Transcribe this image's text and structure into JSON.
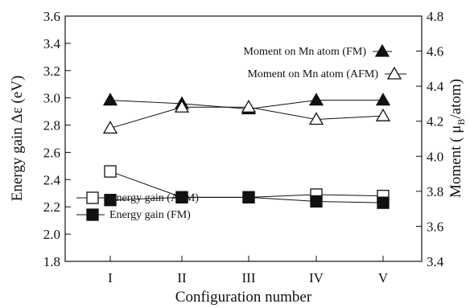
{
  "chart_data": {
    "type": "line",
    "xlabel": "Configuration number",
    "ylabel_left": "Energy gain Δε (eV)",
    "ylabel_right_main": "Moment ( μ",
    "ylabel_right_sub": "B",
    "ylabel_right_tail": "/atom)",
    "categories": [
      "I",
      "II",
      "III",
      "IV",
      "V"
    ],
    "y_left": {
      "ylim": [
        1.8,
        3.6
      ],
      "ticks": [
        "1.8",
        "2.0",
        "2.2",
        "2.4",
        "2.6",
        "2.8",
        "3.0",
        "3.2",
        "3.4",
        "3.6"
      ]
    },
    "y_right": {
      "ylim": [
        3.4,
        4.8
      ],
      "ticks": [
        "3.4",
        "3.6",
        "3.8",
        "4.0",
        "4.2",
        "4.4",
        "4.6",
        "4.8"
      ]
    },
    "grid": false,
    "series": [
      {
        "name": "Moment on Mn atom (FM)",
        "axis": "right",
        "marker": "triangle",
        "filled": true,
        "values": [
          4.32,
          4.3,
          4.27,
          4.32,
          4.32
        ]
      },
      {
        "name": "Moment on Mn atom (AFM)",
        "axis": "right",
        "marker": "triangle",
        "filled": false,
        "values": [
          4.16,
          4.28,
          4.28,
          4.21,
          4.23
        ]
      },
      {
        "name": "Energy gain (AFM)",
        "axis": "left",
        "marker": "square",
        "filled": false,
        "values": [
          2.46,
          2.27,
          2.27,
          2.29,
          2.28
        ]
      },
      {
        "name": "Energy gain (FM)",
        "axis": "left",
        "marker": "square",
        "filled": true,
        "values": [
          2.25,
          2.27,
          2.27,
          2.24,
          2.23
        ]
      }
    ],
    "legends": [
      {
        "label": "Moment on Mn atom (FM)",
        "series": 0,
        "placement": "upper-right",
        "marker_after_text": true
      },
      {
        "label": "Moment on Mn atom (AFM)",
        "series": 1,
        "placement": "upper-right",
        "marker_after_text": true
      },
      {
        "label": "Energy gain (AFM)",
        "series": 2,
        "placement": "lower-left",
        "marker_after_text": false
      },
      {
        "label": "Energy gain (FM)",
        "series": 3,
        "placement": "lower-left",
        "marker_after_text": false
      }
    ],
    "colors": {
      "line": "#111111",
      "background": "#ffffff"
    }
  }
}
